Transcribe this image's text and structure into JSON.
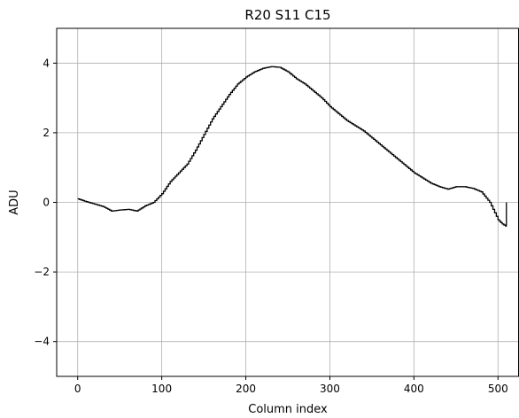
{
  "chart_data": {
    "type": "line",
    "title": "R20 S11 C15",
    "xlabel": "Column index",
    "ylabel": "ADU",
    "xlim": [
      -25,
      525
    ],
    "ylim": [
      -5,
      5
    ],
    "xticks": [
      0,
      100,
      200,
      300,
      400,
      500
    ],
    "yticks": [
      -4,
      -2,
      0,
      2,
      4
    ],
    "xtick_labels": [
      "0",
      "100",
      "200",
      "300",
      "400",
      "500"
    ],
    "ytick_labels": [
      "−4",
      "−2",
      "0",
      "2",
      "4"
    ],
    "grid": true,
    "line_color": "#000000",
    "grid_color": "#b0b0b0",
    "series": [
      {
        "drawstyle": "steps",
        "x": [
          0,
          10,
          20,
          30,
          40,
          50,
          60,
          70,
          80,
          90,
          100,
          110,
          120,
          130,
          140,
          150,
          160,
          170,
          180,
          190,
          200,
          210,
          220,
          230,
          240,
          250,
          260,
          270,
          280,
          290,
          300,
          310,
          320,
          330,
          340,
          350,
          360,
          370,
          380,
          390,
          400,
          410,
          420,
          430,
          440,
          450,
          460,
          470,
          480,
          490,
          500,
          505,
          509,
          510
        ],
        "y": [
          0.1,
          0.02,
          -0.05,
          -0.12,
          -0.25,
          -0.22,
          -0.2,
          -0.25,
          -0.1,
          0.0,
          0.25,
          0.6,
          0.85,
          1.1,
          1.5,
          1.95,
          2.4,
          2.75,
          3.1,
          3.4,
          3.6,
          3.75,
          3.85,
          3.9,
          3.88,
          3.75,
          3.55,
          3.4,
          3.2,
          3.0,
          2.75,
          2.55,
          2.35,
          2.2,
          2.05,
          1.85,
          1.65,
          1.45,
          1.25,
          1.05,
          0.85,
          0.7,
          0.55,
          0.45,
          0.38,
          0.45,
          0.45,
          0.4,
          0.3,
          0.0,
          -0.5,
          -0.62,
          -0.68,
          0.0
        ]
      }
    ]
  }
}
